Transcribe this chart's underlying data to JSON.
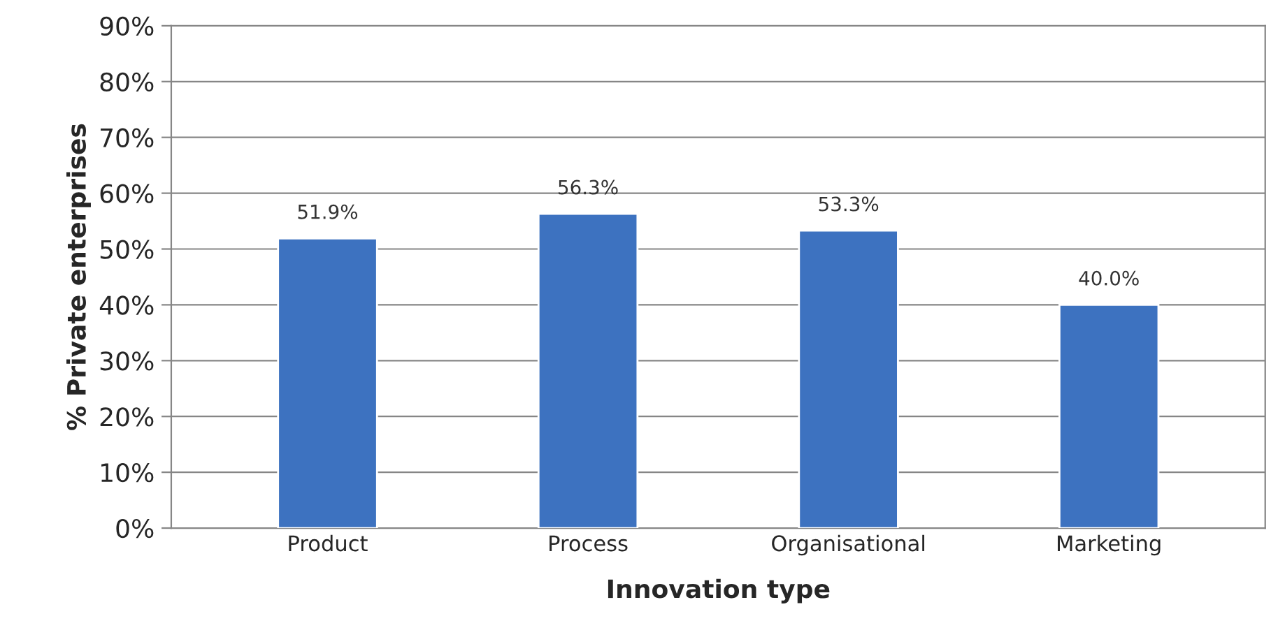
{
  "chart_data": {
    "type": "bar",
    "xlabel": "Innovation type",
    "ylabel": "% Private enterprises",
    "categories": [
      "Product",
      "Process",
      "Organisational",
      "Marketing"
    ],
    "values": [
      51.9,
      56.3,
      53.3,
      40.0
    ],
    "value_labels": [
      "51.9%",
      "56.3%",
      "53.3%",
      "40.0%"
    ],
    "color": "#3d72c0",
    "ylim": [
      0,
      90
    ],
    "yticks": [
      {
        "value": 0,
        "label": "0%"
      },
      {
        "value": 10,
        "label": "10%"
      },
      {
        "value": 20,
        "label": "20%"
      },
      {
        "value": 30,
        "label": "30%"
      },
      {
        "value": 40,
        "label": "40%"
      },
      {
        "value": 50,
        "label": "50%"
      },
      {
        "value": 60,
        "label": "60%"
      },
      {
        "value": 70,
        "label": "70%"
      },
      {
        "value": 80,
        "label": "80%"
      },
      {
        "value": 90,
        "label": "90%"
      }
    ],
    "grid": "y"
  }
}
